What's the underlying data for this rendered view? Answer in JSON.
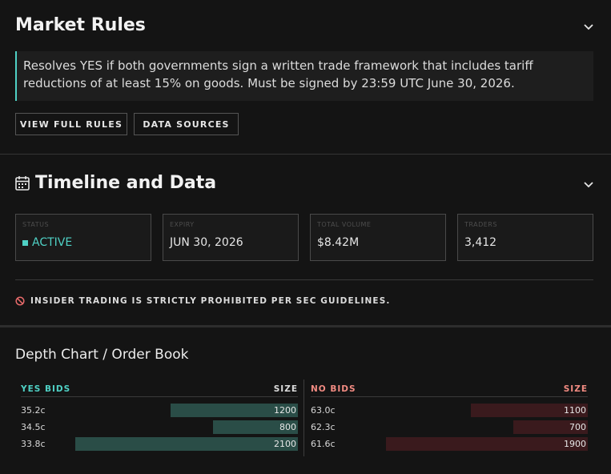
{
  "market_rules": {
    "title": "Market Rules",
    "description": "Resolves YES if both governments sign a written trade framework that includes tariff reductions of at least 15% on goods. Must be signed by 23:59 UTC June 30, 2026.",
    "buttons": [
      "VIEW FULL RULES",
      "DATA SOURCES"
    ]
  },
  "timeline": {
    "title": "Timeline and Data",
    "cards": [
      {
        "label": "STATUS",
        "value": "ACTIVE"
      },
      {
        "label": "EXPIRY",
        "value": "JUN 30, 2026"
      },
      {
        "label": "TOTAL VOLUME",
        "value": "$8.42M"
      },
      {
        "label": "TRADERS",
        "value": "3,412"
      }
    ],
    "warning": "INSIDER TRADING IS STRICTLY PROHIBITED PER SEC GUIDELINES."
  },
  "order_book": {
    "title": "Depth Chart / Order Book",
    "yes": {
      "header": "YES BIDS",
      "size_header": "SIZE",
      "rows": [
        {
          "price": "35.2c",
          "size": "1200",
          "value": 1200
        },
        {
          "price": "34.5c",
          "size": "800",
          "value": 800
        },
        {
          "price": "33.8c",
          "size": "2100",
          "value": 2100
        }
      ]
    },
    "no": {
      "header": "NO BIDS",
      "size_header": "SIZE",
      "rows": [
        {
          "price": "63.0c",
          "size": "1100",
          "value": 1100
        },
        {
          "price": "62.3c",
          "size": "700",
          "value": 700
        },
        {
          "price": "61.6c",
          "size": "1900",
          "value": 1900
        }
      ]
    }
  },
  "colors": {
    "accent_teal": "#4fd1c5",
    "yes_bar": "#2a4d47",
    "no_bar": "#3a1a1d",
    "no_header": "#f28b82",
    "warning_icon": "#e86b6b"
  }
}
